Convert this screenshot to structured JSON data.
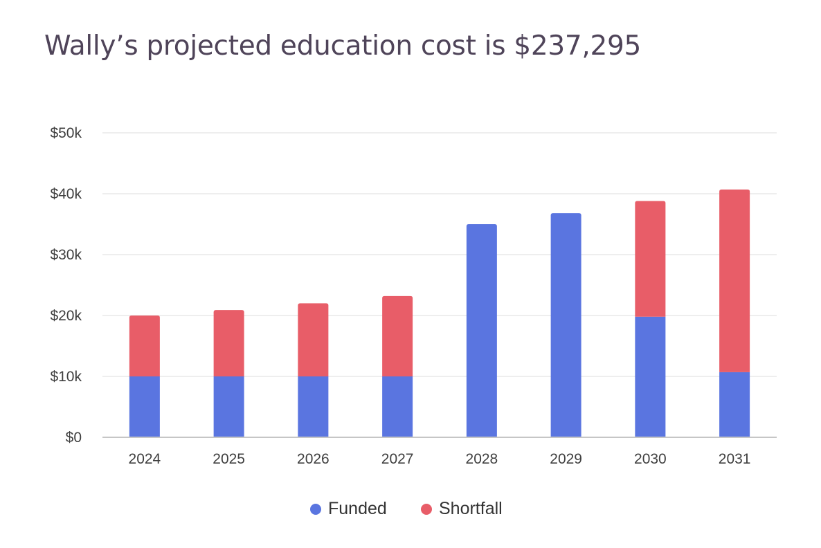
{
  "title": "Wally’s projected education cost is $237,295",
  "colors": {
    "funded": "#5a75e0",
    "shortfall": "#e85d68",
    "grid": "#e8e8e8",
    "axis": "#c6c6c6"
  },
  "chart_data": {
    "type": "bar",
    "stacked": true,
    "title": "Wally’s projected education cost is $237,295",
    "categories": [
      "2024",
      "2025",
      "2026",
      "2027",
      "2028",
      "2029",
      "2030",
      "2031"
    ],
    "series": [
      {
        "name": "Funded",
        "color": "#5a75e0",
        "values": [
          10000,
          10000,
          10000,
          10000,
          35000,
          36800,
          19800,
          10700
        ]
      },
      {
        "name": "Shortfall",
        "color": "#e85d68",
        "values": [
          10000,
          10900,
          12000,
          13200,
          0,
          0,
          19000,
          30000
        ]
      }
    ],
    "ylim": [
      0,
      50000
    ],
    "yticks": [
      0,
      10000,
      20000,
      30000,
      40000,
      50000
    ],
    "ytick_labels": [
      "$0",
      "$10k",
      "$20k",
      "$30k",
      "$40k",
      "$50k"
    ],
    "grid": true,
    "legend": "bottom-center"
  }
}
